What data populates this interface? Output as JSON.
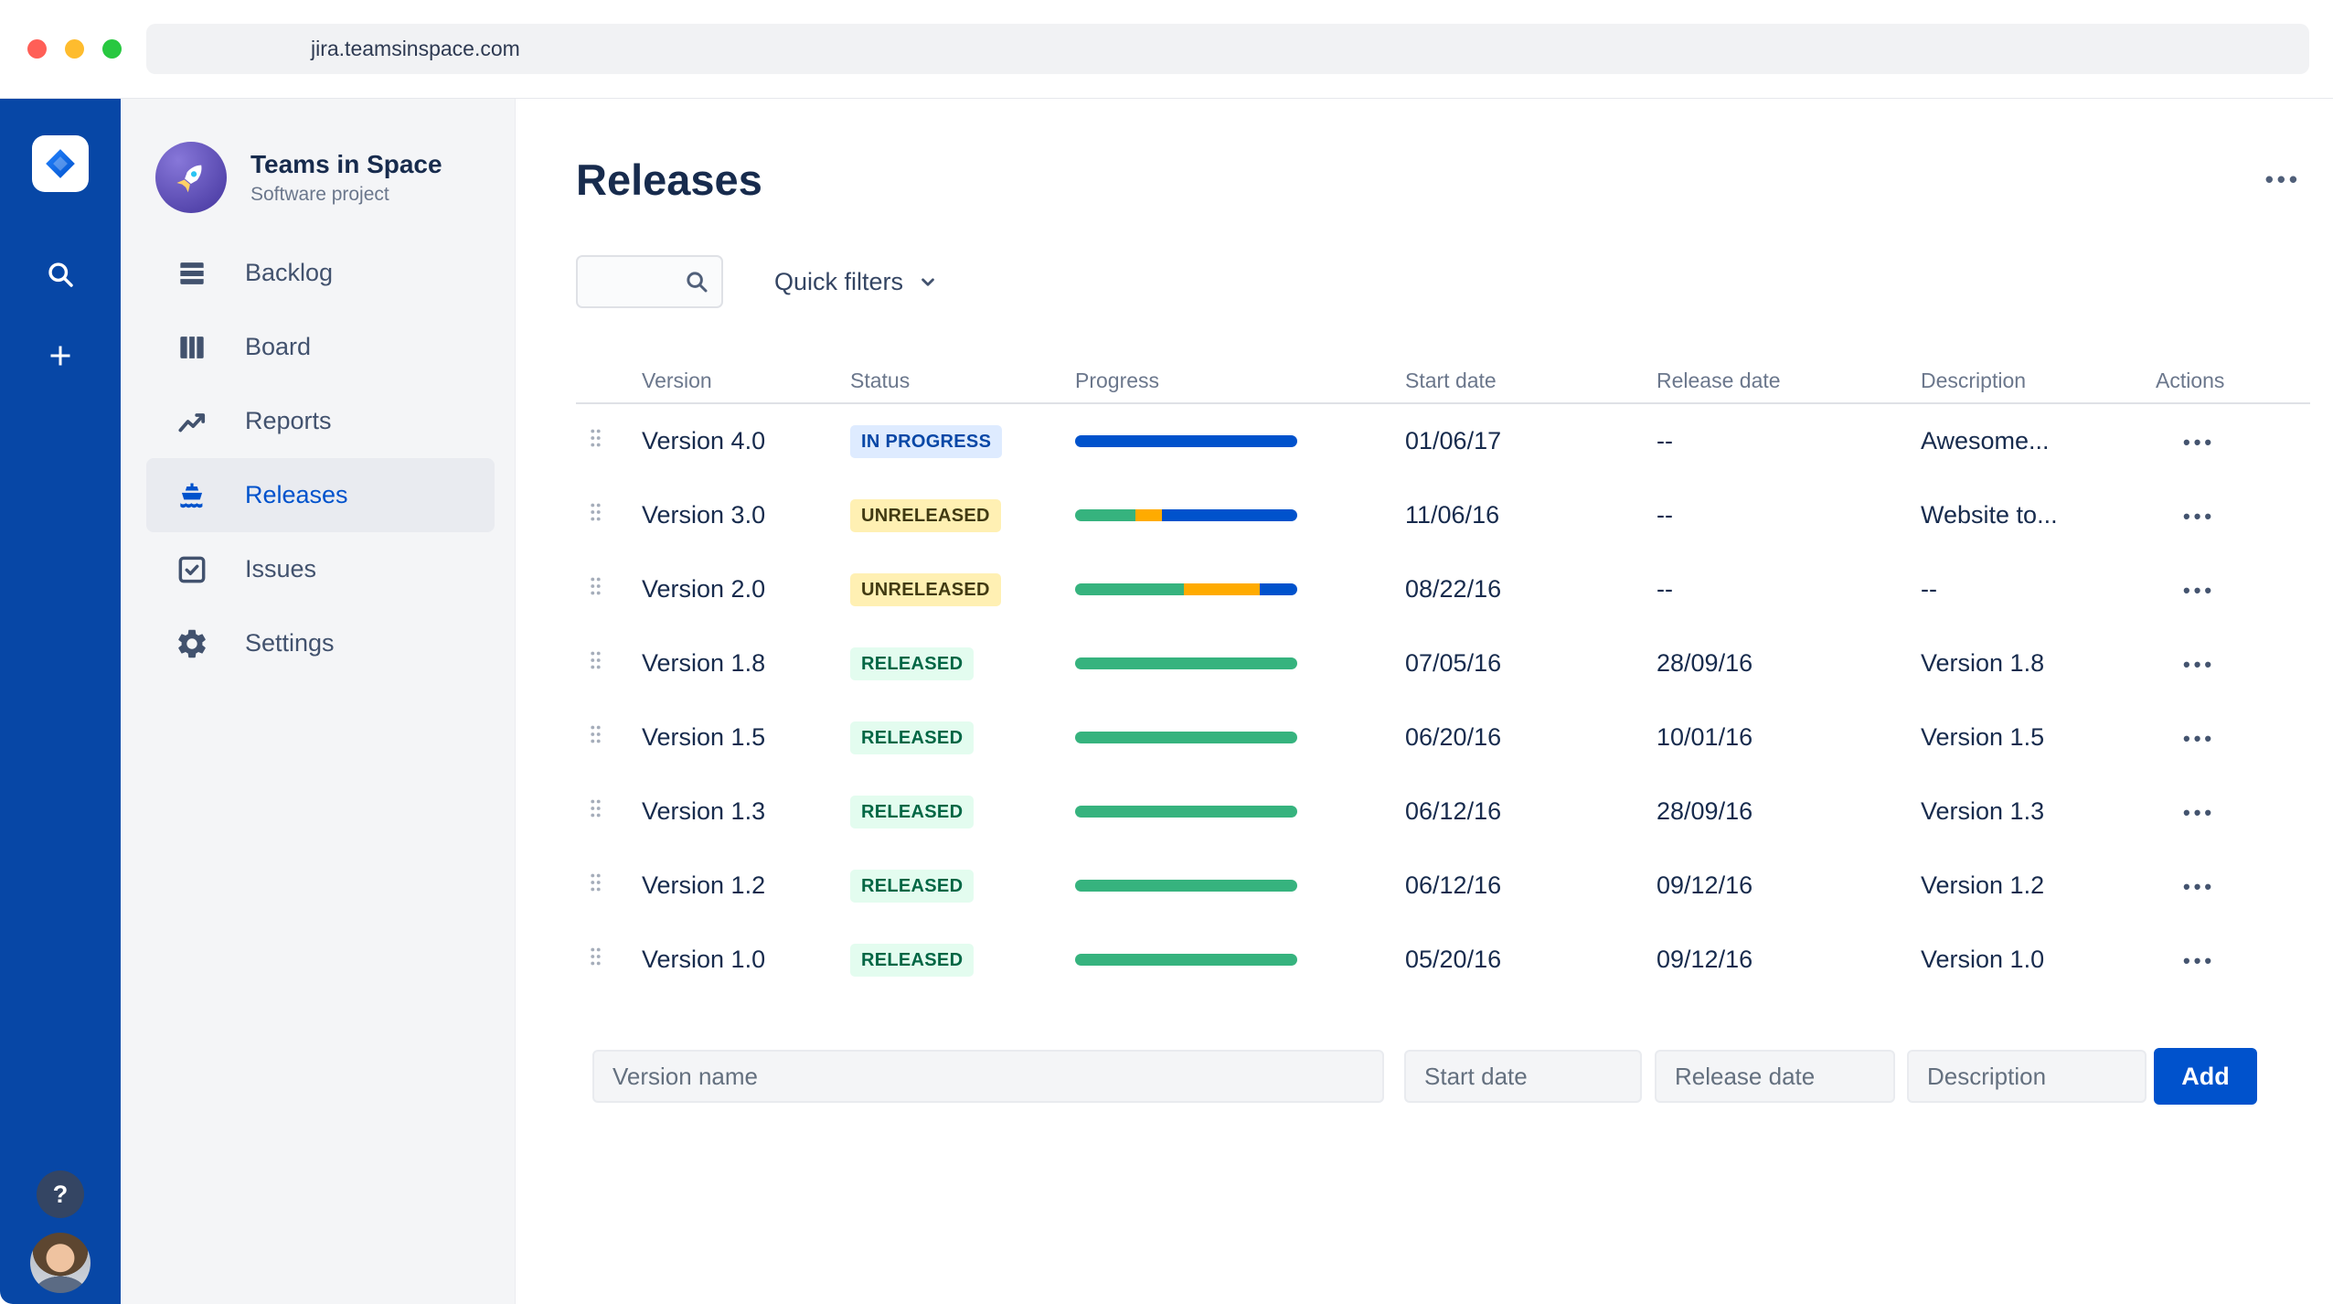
{
  "browser": {
    "url": "jira.teamsinspace.com"
  },
  "rail": {
    "help_label": "?"
  },
  "sidebar": {
    "project_name": "Teams in Space",
    "project_type": "Software project",
    "items": [
      {
        "label": "Backlog",
        "icon": "backlog-icon",
        "selected": false
      },
      {
        "label": "Board",
        "icon": "board-icon",
        "selected": false
      },
      {
        "label": "Reports",
        "icon": "reports-icon",
        "selected": false
      },
      {
        "label": "Releases",
        "icon": "releases-icon",
        "selected": true
      },
      {
        "label": "Issues",
        "icon": "issues-icon",
        "selected": false
      },
      {
        "label": "Settings",
        "icon": "settings-icon",
        "selected": false
      }
    ]
  },
  "main": {
    "title": "Releases",
    "more_label": "•••",
    "quick_filters_label": "Quick filters",
    "table": {
      "columns": [
        "Version",
        "Status",
        "Progress",
        "Start date",
        "Release date",
        "Description",
        "Actions"
      ],
      "rows": [
        {
          "version": "Version 4.0",
          "status": "IN PROGRESS",
          "status_type": "inprogress",
          "progress": [
            {
              "color": "#0052CC",
              "pct": 100
            }
          ],
          "start_date": "01/06/17",
          "release_date": "--",
          "description": "Awesome...",
          "actions": "•••"
        },
        {
          "version": "Version 3.0",
          "status": "UNRELEASED",
          "status_type": "unreleased",
          "progress": [
            {
              "color": "#36B37E",
              "pct": 27
            },
            {
              "color": "#FFAB00",
              "pct": 12
            },
            {
              "color": "#0052CC",
              "pct": 61
            }
          ],
          "start_date": "11/06/16",
          "release_date": "--",
          "description": "Website to...",
          "actions": "•••"
        },
        {
          "version": "Version 2.0",
          "status": "UNRELEASED",
          "status_type": "unreleased",
          "progress": [
            {
              "color": "#36B37E",
              "pct": 49
            },
            {
              "color": "#FFAB00",
              "pct": 34
            },
            {
              "color": "#0052CC",
              "pct": 17
            }
          ],
          "start_date": "08/22/16",
          "release_date": "--",
          "description": "--",
          "actions": "•••"
        },
        {
          "version": "Version 1.8",
          "status": "RELEASED",
          "status_type": "released",
          "progress": [
            {
              "color": "#36B37E",
              "pct": 100
            }
          ],
          "start_date": "07/05/16",
          "release_date": "28/09/16",
          "description": "Version 1.8",
          "actions": "•••"
        },
        {
          "version": "Version 1.5",
          "status": "RELEASED",
          "status_type": "released",
          "progress": [
            {
              "color": "#36B37E",
              "pct": 100
            }
          ],
          "start_date": "06/20/16",
          "release_date": "10/01/16",
          "description": "Version 1.5",
          "actions": "•••"
        },
        {
          "version": "Version 1.3",
          "status": "RELEASED",
          "status_type": "released",
          "progress": [
            {
              "color": "#36B37E",
              "pct": 100
            }
          ],
          "start_date": "06/12/16",
          "release_date": "28/09/16",
          "description": "Version 1.3",
          "actions": "•••"
        },
        {
          "version": "Version 1.2",
          "status": "RELEASED",
          "status_type": "released",
          "progress": [
            {
              "color": "#36B37E",
              "pct": 100
            }
          ],
          "start_date": "06/12/16",
          "release_date": "09/12/16",
          "description": "Version 1.2",
          "actions": "•••"
        },
        {
          "version": "Version 1.0",
          "status": "RELEASED",
          "status_type": "released",
          "progress": [
            {
              "color": "#36B37E",
              "pct": 100
            }
          ],
          "start_date": "05/20/16",
          "release_date": "09/12/16",
          "description": "Version 1.0",
          "actions": "•••"
        }
      ]
    },
    "form": {
      "version_placeholder": "Version name",
      "start_placeholder": "Start date",
      "release_placeholder": "Release date",
      "description_placeholder": "Description",
      "add_label": "Add"
    }
  },
  "colors": {
    "rail_bg": "#0747A6",
    "accent_blue": "#0052CC",
    "green": "#36B37E",
    "yellow": "#FFAB00",
    "badge_inprogress_bg": "#DEEBFF",
    "badge_unreleased_bg": "#FFF0B3",
    "badge_released_bg": "#E3FCEF"
  }
}
